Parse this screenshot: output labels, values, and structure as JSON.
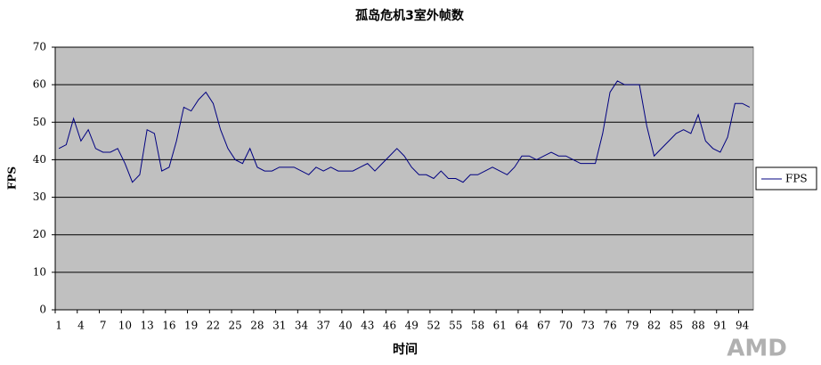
{
  "chart_data": {
    "type": "line",
    "title": "孤岛危机3室外帧数",
    "x_label": "时间",
    "y_label": "FPS",
    "categories": [
      1,
      null,
      null,
      4,
      null,
      null,
      7,
      null,
      null,
      10,
      null,
      null,
      13,
      null,
      null,
      16,
      null,
      null,
      19,
      null,
      null,
      22,
      null,
      null,
      25,
      null,
      null,
      28,
      null,
      null,
      31,
      null,
      null,
      34,
      null,
      null,
      37,
      null,
      null,
      40,
      null,
      null,
      43,
      null,
      null,
      46,
      null,
      null,
      49,
      null,
      null,
      52,
      null,
      null,
      55,
      null,
      null,
      58,
      null,
      null,
      61,
      null,
      null,
      64,
      null,
      null,
      67,
      null,
      null,
      70,
      null,
      null,
      73,
      null,
      null,
      76,
      null,
      null,
      79,
      null,
      null,
      82,
      null,
      null,
      85,
      null,
      null,
      88,
      null,
      null,
      91,
      null,
      null,
      94,
      null
    ],
    "series": [
      {
        "name": "FPS",
        "color": "#000080",
        "values": [
          43,
          44,
          51,
          45,
          48,
          43,
          42,
          42,
          43,
          39,
          34,
          36,
          48,
          47,
          37,
          38,
          45,
          54,
          53,
          56,
          58,
          55,
          48,
          43,
          40,
          39,
          43,
          38,
          37,
          37,
          38,
          38,
          38,
          37,
          36,
          38,
          37,
          38,
          37,
          37,
          37,
          38,
          39,
          37,
          39,
          41,
          43,
          41,
          38,
          36,
          36,
          35,
          37,
          35,
          35,
          34,
          36,
          36,
          37,
          38,
          37,
          36,
          38,
          41,
          41,
          40,
          41,
          42,
          41,
          41,
          40,
          39,
          39,
          39,
          47,
          58,
          61,
          60,
          60,
          60,
          49,
          41,
          43,
          45,
          47,
          48,
          47,
          52,
          45,
          43,
          42,
          46,
          55,
          55,
          54
        ]
      }
    ],
    "ylim": [
      0,
      70
    ],
    "yticks": [
      0,
      10,
      20,
      30,
      40,
      50,
      60,
      70
    ],
    "grid": true,
    "legend": "right",
    "plot_background": "#c0c0c0",
    "watermark": "AMD"
  }
}
